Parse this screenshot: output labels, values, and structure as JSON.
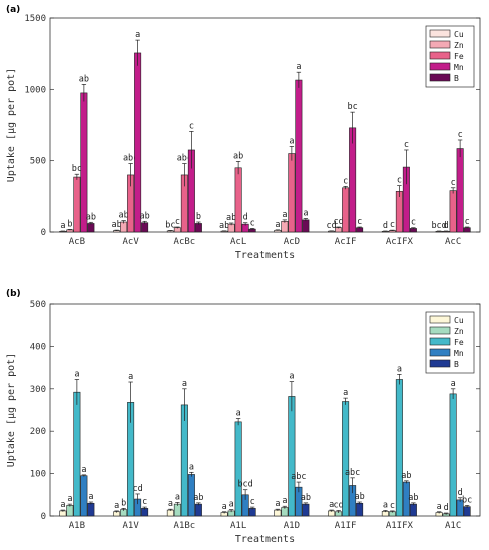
{
  "chart_data": [
    {
      "panel": "(a)",
      "type": "bar",
      "xlabel": "Treatments",
      "ylabel": "Uptake [μg per pot]",
      "ylim": [
        0,
        1500
      ],
      "yticks": [
        0,
        500,
        1000,
        1500
      ],
      "categories": [
        "AcB",
        "AcV",
        "AcBc",
        "AcL",
        "AcD",
        "AcIF",
        "AcIFX",
        "AcC"
      ],
      "legend_position": "top-right",
      "series": [
        {
          "name": "Cu",
          "color": "#fbe3de",
          "values": [
            5,
            10,
            8,
            6,
            12,
            6,
            5,
            5
          ],
          "errors": [
            2,
            3,
            3,
            2,
            3,
            2,
            2,
            2
          ],
          "letters": [
            "a",
            "ab",
            "bc",
            "ab",
            "a",
            "cd",
            "d",
            "bcd"
          ]
        },
        {
          "name": "Zn",
          "color": "#f4a9b4",
          "values": [
            15,
            70,
            30,
            55,
            75,
            30,
            10,
            5
          ],
          "errors": [
            3,
            10,
            5,
            8,
            10,
            5,
            3,
            2
          ],
          "letters": [
            "b",
            "ab",
            "c",
            "ab",
            "a",
            "cd",
            "c",
            "d"
          ]
        },
        {
          "name": "Fe",
          "color": "#e8628a",
          "values": [
            385,
            400,
            400,
            450,
            550,
            310,
            285,
            290
          ],
          "errors": [
            20,
            80,
            80,
            45,
            50,
            10,
            40,
            20
          ],
          "letters": [
            "bc",
            "abc",
            "abc",
            "ab",
            "a",
            "c",
            "c",
            "c"
          ]
        },
        {
          "name": "Mn",
          "color": "#c21d8a",
          "values": [
            975,
            1255,
            575,
            55,
            1065,
            730,
            455,
            585
          ],
          "errors": [
            60,
            90,
            130,
            10,
            55,
            110,
            120,
            60
          ],
          "letters": [
            "ab",
            "a",
            "c",
            "d",
            "a",
            "bc",
            "c",
            "c"
          ]
        },
        {
          "name": "B",
          "color": "#6a0a55",
          "values": [
            60,
            65,
            60,
            20,
            85,
            30,
            25,
            30
          ],
          "errors": [
            8,
            10,
            10,
            5,
            10,
            5,
            5,
            5
          ],
          "letters": [
            "ab",
            "ab",
            "b",
            "c",
            "a",
            "c",
            "c",
            "c"
          ]
        }
      ]
    },
    {
      "panel": "(b)",
      "type": "bar",
      "xlabel": "Treatments",
      "ylabel": "Uptake [μg per pot]",
      "ylim": [
        0,
        500
      ],
      "yticks": [
        0,
        100,
        200,
        300,
        400,
        500
      ],
      "categories": [
        "A1B",
        "A1V",
        "A1Bc",
        "A1L",
        "A1D",
        "A1IF",
        "A1IFX",
        "A1C"
      ],
      "legend_position": "top-right",
      "series": [
        {
          "name": "Cu",
          "color": "#fdf7d8",
          "values": [
            12,
            10,
            14,
            8,
            14,
            12,
            11,
            8
          ],
          "errors": [
            2,
            2,
            2,
            2,
            2,
            2,
            2,
            2
          ],
          "letters": [
            "a",
            "a",
            "a",
            "a",
            "a",
            "a",
            "a",
            "a"
          ]
        },
        {
          "name": "Zn",
          "color": "#a6dcc0",
          "values": [
            25,
            15,
            28,
            12,
            20,
            10,
            10,
            5
          ],
          "errors": [
            3,
            3,
            4,
            3,
            3,
            3,
            2,
            2
          ],
          "letters": [
            "a",
            "b",
            "a",
            "a",
            "a",
            "cd",
            "c",
            "d"
          ]
        },
        {
          "name": "Fe",
          "color": "#43b9c9",
          "values": [
            292,
            268,
            262,
            222,
            282,
            270,
            322,
            288
          ],
          "errors": [
            30,
            48,
            38,
            8,
            35,
            8,
            12,
            12
          ],
          "letters": [
            "a",
            "a",
            "a",
            "a",
            "a",
            "a",
            "a",
            "a"
          ]
        },
        {
          "name": "Mn",
          "color": "#2f7fc2",
          "values": [
            95,
            40,
            98,
            50,
            68,
            72,
            80,
            38
          ],
          "errors": [
            2,
            12,
            5,
            12,
            12,
            18,
            3,
            5
          ],
          "letters": [
            "a",
            "cd",
            "a",
            "bcd",
            "abc",
            "abc",
            "ab",
            "d"
          ]
        },
        {
          "name": "B",
          "color": "#1f3a93",
          "values": [
            30,
            18,
            28,
            18,
            28,
            30,
            28,
            22
          ],
          "errors": [
            3,
            3,
            3,
            3,
            3,
            3,
            3,
            3
          ],
          "letters": [
            "a",
            "c",
            "ab",
            "c",
            "ab",
            "ab",
            "ab",
            "bc"
          ]
        }
      ]
    }
  ]
}
